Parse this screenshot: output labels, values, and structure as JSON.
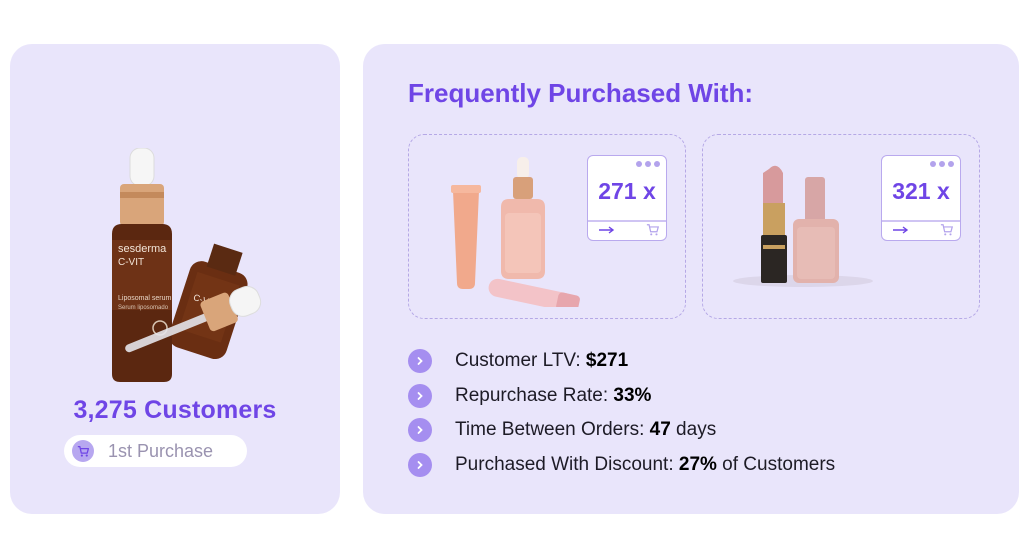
{
  "customers": {
    "count_label": "3,275 Customers",
    "purchase_pill": "1st Purchase"
  },
  "frequently_purchased": {
    "title": "Frequently Purchased With:",
    "products": [
      {
        "count": "271 x"
      },
      {
        "count": "321 x"
      }
    ]
  },
  "product_brand": {
    "brand": "sesderma",
    "name": "C-VIT",
    "desc": "Liposomal serum",
    "desc2": "Serum liposomado"
  },
  "stats": [
    {
      "label": "Customer LTV: ",
      "value": "$271",
      "suffix": ""
    },
    {
      "label": "Repurchase Rate: ",
      "value": "33%",
      "suffix": ""
    },
    {
      "label": "Time Between Orders: ",
      "value": "47",
      "suffix": " days"
    },
    {
      "label": "Purchased With Discount: ",
      "value": "27%",
      "suffix": " of Customers"
    }
  ],
  "colors": {
    "accent": "#6f45e6",
    "card_bg": "#e9e5fb",
    "chevron": "#a58ef0"
  }
}
